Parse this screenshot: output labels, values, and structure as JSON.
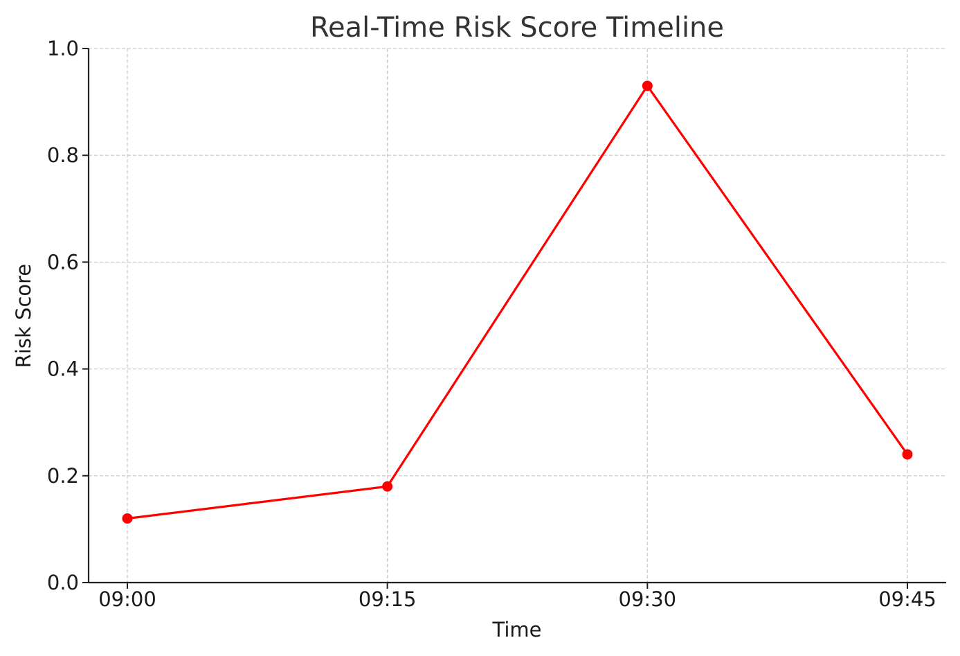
{
  "chart_data": {
    "type": "line",
    "title": "Real-Time Risk Score Timeline",
    "xlabel": "Time",
    "ylabel": "Risk Score",
    "categories": [
      "09:00",
      "09:15",
      "09:30",
      "09:45"
    ],
    "series": [
      {
        "values": [
          0.12,
          0.18,
          0.93,
          0.24
        ],
        "color": "#ff0000",
        "marker": "circle"
      }
    ],
    "ylim": [
      0.0,
      1.0
    ],
    "yticks": [
      "0.0",
      "0.2",
      "0.4",
      "0.6",
      "0.8",
      "1.0"
    ],
    "grid": true,
    "legend": "none"
  }
}
